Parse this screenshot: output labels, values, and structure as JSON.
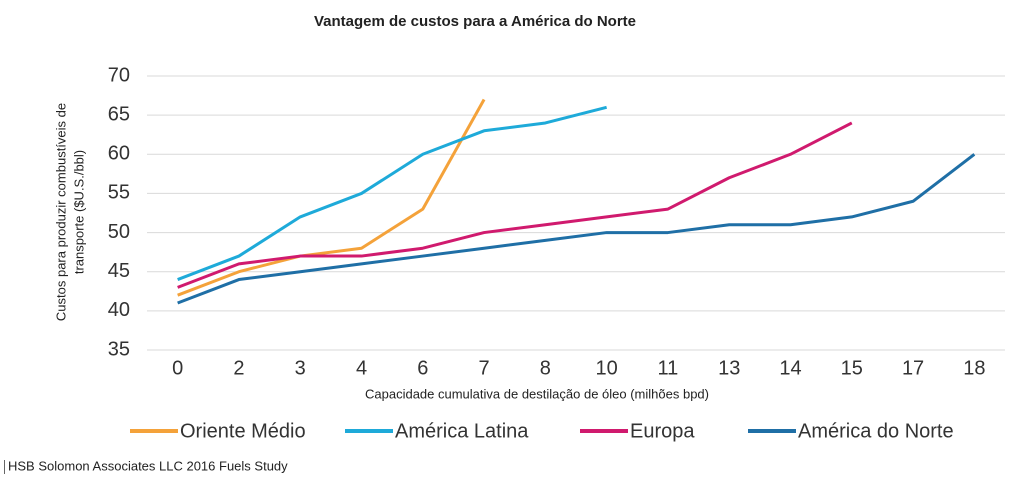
{
  "chart_data": {
    "type": "line",
    "title": "Vantagem de custos para a América do Norte",
    "ylabel": [
      "Custos para produzir combustíveis de",
      "transporte ($U.S./bbl)"
    ],
    "xlabel": "Capacidade cumulativa de destilação de óleo (milhões bpd)",
    "source": "HSB Solomon Associates LLC 2016 Fuels Study",
    "categories": [
      "0",
      "2",
      "3",
      "4",
      "6",
      "7",
      "8",
      "10",
      "11",
      "13",
      "14",
      "15",
      "17",
      "18"
    ],
    "ylim": [
      35,
      70
    ],
    "yticks": [
      35,
      40,
      45,
      50,
      55,
      60,
      65,
      70
    ],
    "grid": true,
    "series": [
      {
        "name": "Oriente Médio",
        "color": "#f4a23a",
        "values": [
          42,
          45,
          47,
          48,
          53,
          67,
          null,
          null,
          null,
          null,
          null,
          null,
          null,
          null
        ]
      },
      {
        "name": "América Latina",
        "color": "#1eaad9",
        "values": [
          44,
          47,
          52,
          55,
          60,
          63,
          64,
          66,
          null,
          null,
          null,
          null,
          null,
          null
        ]
      },
      {
        "name": "Europa",
        "color": "#d01a6e",
        "values": [
          43,
          46,
          47,
          47,
          48,
          50,
          51,
          52,
          53,
          57,
          60,
          64,
          null,
          null
        ]
      },
      {
        "name": "América do Norte",
        "color": "#1f6fa6",
        "values": [
          41,
          44,
          45,
          46,
          47,
          48,
          49,
          50,
          50,
          51,
          51,
          52,
          54,
          60
        ]
      }
    ]
  }
}
